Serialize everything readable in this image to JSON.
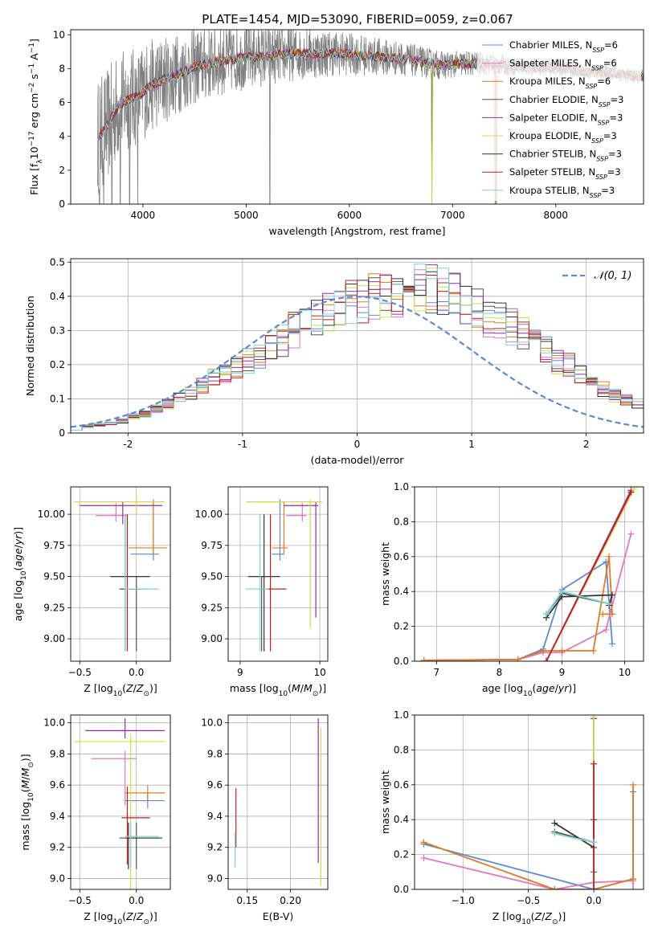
{
  "figure_title": "PLATE=1454, MJD=53090, FIBERID=0059, z=0.067",
  "colors": {
    "Chabrier MILES": "#5B8BD6",
    "Salpeter MILES": "#E377C2",
    "Kroupa MILES": "#E07B24",
    "Chabrier ELODIE": "#555555",
    "Salpeter ELODIE": "#9B27B0",
    "Kroupa ELODIE": "#CCE040",
    "Chabrier STELIB": "#333333",
    "Salpeter STELIB": "#C61E1E",
    "Kroupa STELIB": "#7FD6D6",
    "data": "#808080",
    "grid": "#b0b0b0"
  },
  "chart_data": [
    {
      "id": "spectrum",
      "type": "line",
      "xlabel": "wavelength [Angstrom, rest frame]",
      "ylabel": "Flux [fλ10⁻¹⁷ erg cm⁻² s⁻¹ A⁻¹]",
      "xlim": [
        3300,
        8850
      ],
      "ylim": [
        0,
        10.3
      ],
      "xticks": [
        4000,
        5000,
        6000,
        7000,
        8000
      ],
      "yticks": [
        0,
        2,
        4,
        6,
        8,
        10
      ],
      "grid": false,
      "legend_position": "right",
      "legend": [
        "Chabrier MILES, N_SSP=6",
        "Salpeter MILES, N_SSP=6",
        "Kroupa MILES, N_SSP=6",
        "Chabrier ELODIE, N_SSP=3",
        "Salpeter ELODIE, N_SSP=3",
        "Kroupa ELODIE, N_SSP=3",
        "Chabrier STELIB, N_SSP=3",
        "Salpeter STELIB, N_SSP=3",
        "Kroupa STELIB, N_SSP=3"
      ],
      "model_continuum": {
        "x": [
          3550,
          3650,
          3750,
          3850,
          3950,
          4050,
          4150,
          4300,
          4500,
          4700,
          4900,
          5100,
          5300,
          5500,
          5700,
          5900,
          6100,
          6300,
          6500,
          6700,
          6900,
          7100,
          7300,
          7500,
          7700,
          7900,
          8100,
          8300,
          8500,
          8700,
          8850
        ],
        "y": [
          3.8,
          4.6,
          5.7,
          6.2,
          6.3,
          6.9,
          7.2,
          7.6,
          8.1,
          8.4,
          8.6,
          8.7,
          8.8,
          8.9,
          8.9,
          8.9,
          8.8,
          8.7,
          8.6,
          8.4,
          8.2,
          8.3,
          8.3,
          8.2,
          8.1,
          8.1,
          8.0,
          7.8,
          7.8,
          7.6,
          7.5
        ]
      },
      "data_noise_amplitude": [
        3.5,
        2.4,
        1.8,
        1.3,
        0.9,
        0.6,
        0.45
      ],
      "data_dropouts_x": [
        3580,
        3620,
        3700,
        3780,
        3870,
        3950,
        5230,
        6800,
        7420
      ]
    },
    {
      "id": "residuals",
      "type": "histogram",
      "xlabel": "(data-model)/error",
      "ylabel": "Normed distribution",
      "xlim": [
        -2.5,
        2.5
      ],
      "ylim": [
        0,
        0.51
      ],
      "xticks": [
        -2,
        -1,
        0,
        1,
        2
      ],
      "yticks": [
        0.0,
        0.1,
        0.2,
        0.3,
        0.4,
        0.5
      ],
      "grid": true,
      "legend": [
        "𝒩(0, 1)"
      ],
      "bin_width": 0.1,
      "bin_start": -2.5,
      "series_base": [
        0.01,
        0.02,
        0.025,
        0.03,
        0.035,
        0.05,
        0.055,
        0.07,
        0.085,
        0.1,
        0.12,
        0.14,
        0.16,
        0.18,
        0.19,
        0.21,
        0.23,
        0.25,
        0.27,
        0.3,
        0.31,
        0.33,
        0.35,
        0.36,
        0.38,
        0.39,
        0.4,
        0.4,
        0.41,
        0.42,
        0.42,
        0.42,
        0.41,
        0.4,
        0.38,
        0.37,
        0.34,
        0.33,
        0.31,
        0.29,
        0.26,
        0.24,
        0.21,
        0.2,
        0.17,
        0.15,
        0.13,
        0.11,
        0.1,
        0.08,
        0.06,
        0.05,
        0.04,
        0.03,
        0.025,
        0.02,
        0.02,
        0.015,
        0.01,
        0.01
      ]
    },
    {
      "id": "age_vs_Z",
      "type": "errorbar",
      "xlabel": "Z [log₁₀(Z/Z⊙)]",
      "ylabel": "age  [log₁₀(age/yr)]",
      "xlim": [
        -0.58,
        0.3
      ],
      "ylim": [
        8.82,
        10.22
      ],
      "xticks": [
        -0.5,
        0.0
      ],
      "xticklabels": [
        "−0.5",
        "0.0"
      ],
      "yticks": [
        9.0,
        9.25,
        9.5,
        9.75,
        10.0
      ],
      "yticklabels": [
        "9.00",
        "9.25",
        "9.50",
        "9.75",
        "10.00"
      ],
      "grid": true,
      "points": [
        {
          "s": "Chabrier MILES",
          "x": 0.15,
          "xerr": [
            0.2,
            0.05
          ],
          "y": 9.68,
          "yerr": [
            0.05,
            0.44
          ]
        },
        {
          "s": "Salpeter MILES",
          "x": -0.18,
          "xerr": [
            0.18,
            0.1
          ],
          "y": 9.99,
          "yerr": [
            0.05,
            0.1
          ]
        },
        {
          "s": "Kroupa MILES",
          "x": 0.15,
          "xerr": [
            0.22,
            0.12
          ],
          "y": 9.73,
          "yerr": [
            0.05,
            0.37
          ]
        },
        {
          "s": "Chabrier ELODIE",
          "x": 0.0,
          "xerr": [
            0.15,
            0.02
          ],
          "y": 9.4,
          "yerr": [
            0.5,
            0.1
          ]
        },
        {
          "s": "Salpeter ELODIE",
          "x": -0.12,
          "xerr": [
            0.38,
            0.35
          ],
          "y": 10.07,
          "yerr": [
            0.15,
            0.03
          ]
        },
        {
          "s": "Kroupa ELODIE",
          "x": 0.0,
          "xerr": [
            0.55,
            0.25
          ],
          "y": 10.1,
          "yerr": [
            0.1,
            0.05
          ]
        },
        {
          "s": "Chabrier STELIB",
          "x": -0.1,
          "xerr": [
            0.13,
            0.22
          ],
          "y": 9.5,
          "yerr": [
            0.6,
            0.5
          ]
        },
        {
          "s": "Salpeter STELIB",
          "x": -0.08,
          "xerr": [
            0.05,
            0.15
          ],
          "y": 9.4,
          "yerr": [
            0.5,
            0.6
          ]
        },
        {
          "s": "Kroupa STELIB",
          "x": -0.1,
          "xerr": [
            0.01,
            0.3
          ],
          "y": 9.4,
          "yerr": [
            0.5,
            0.6
          ]
        }
      ]
    },
    {
      "id": "age_vs_mass",
      "type": "errorbar",
      "xlabel": "mass [log₁₀(M/M⊙)]",
      "ylabel": "",
      "xlim": [
        8.85,
        10.1
      ],
      "ylim": [
        8.82,
        10.22
      ],
      "xticks": [
        9,
        10
      ],
      "yticks": [
        9.0,
        9.25,
        9.5,
        9.75,
        10.0
      ],
      "yticklabels": [
        "9.00",
        "9.25",
        "9.50",
        "9.75",
        "10.00"
      ],
      "grid": true,
      "points": [
        {
          "s": "Chabrier MILES",
          "x": 9.5,
          "xerr": [
            0.1,
            0.05
          ],
          "y": 9.68,
          "yerr": [
            0.05,
            0.44
          ]
        },
        {
          "s": "Salpeter MILES",
          "x": 9.78,
          "xerr": [
            0.2,
            0.05
          ],
          "y": 9.99,
          "yerr": [
            0.05,
            0.1
          ]
        },
        {
          "s": "Kroupa MILES",
          "x": 9.55,
          "xerr": [
            0.15,
            0.05
          ],
          "y": 9.73,
          "yerr": [
            0.05,
            0.37
          ]
        },
        {
          "s": "Chabrier ELODIE",
          "x": 9.27,
          "xerr": [
            0.03,
            0.03
          ],
          "y": 9.4,
          "yerr": [
            0.5,
            0.1
          ]
        },
        {
          "s": "Salpeter ELODIE",
          "x": 9.95,
          "xerr": [
            0.4,
            0.03
          ],
          "y": 10.07,
          "yerr": [
            0.9,
            0.03
          ]
        },
        {
          "s": "Kroupa ELODIE",
          "x": 9.88,
          "xerr": [
            0.8,
            0.15
          ],
          "y": 10.1,
          "yerr": [
            1.02,
            0.02
          ]
        },
        {
          "s": "Chabrier STELIB",
          "x": 9.3,
          "xerr": [
            0.2,
            0.2
          ],
          "y": 9.5,
          "yerr": [
            0.6,
            0.5
          ]
        },
        {
          "s": "Salpeter STELIB",
          "x": 9.38,
          "xerr": [
            0.15,
            0.2
          ],
          "y": 9.4,
          "yerr": [
            0.5,
            0.6
          ]
        },
        {
          "s": "Kroupa STELIB",
          "x": 9.25,
          "xerr": [
            0.18,
            0.1
          ],
          "y": 9.4,
          "yerr": [
            0.5,
            0.6
          ]
        }
      ]
    },
    {
      "id": "weight_vs_age",
      "type": "line",
      "xlabel": "age  [log₁₀(age/yr)]",
      "ylabel": "mass weight",
      "xlim": [
        6.65,
        10.3
      ],
      "ylim": [
        0,
        1.0
      ],
      "xticks": [
        7,
        8,
        9,
        10
      ],
      "yticks": [
        0.0,
        0.2,
        0.4,
        0.6,
        0.8,
        1.0
      ],
      "yticklabels": [
        "0.0",
        "0.2",
        "0.4",
        "0.6",
        "0.8",
        "1.0"
      ],
      "grid": true,
      "series": [
        {
          "s": "Chabrier MILES",
          "x": [
            6.8,
            8.3,
            8.7,
            9.0,
            9.7,
            9.8
          ],
          "y": [
            0.005,
            0.01,
            0.07,
            0.41,
            0.57,
            0.1
          ]
        },
        {
          "s": "Salpeter MILES",
          "x": [
            6.8,
            8.3,
            8.7,
            9.0,
            9.7,
            10.1
          ],
          "y": [
            0.005,
            0.01,
            0.05,
            0.05,
            0.18,
            0.73
          ]
        },
        {
          "s": "Kroupa MILES",
          "x": [
            6.8,
            8.3,
            8.7,
            9.0,
            9.5,
            9.75,
            9.8,
            9.65
          ],
          "y": [
            0.005,
            0.01,
            0.06,
            0.06,
            0.06,
            0.6,
            0.27,
            0.27
          ]
        },
        {
          "s": "Chabrier ELODIE",
          "x": [
            8.75,
            9.0,
            9.75
          ],
          "y": [
            0.27,
            0.39,
            0.33
          ]
        },
        {
          "s": "Salpeter ELODIE",
          "x": [
            8.75,
            10.1
          ],
          "y": [
            0.0,
            0.98
          ]
        },
        {
          "s": "Kroupa ELODIE",
          "x": [
            8.75,
            10.15
          ],
          "y": [
            0.0,
            0.99
          ]
        },
        {
          "s": "Chabrier STELIB",
          "x": [
            8.75,
            9.0,
            9.8,
            9.75
          ],
          "y": [
            0.25,
            0.37,
            0.38,
            0.32
          ]
        },
        {
          "s": "Salpeter STELIB",
          "x": [
            8.75,
            10.1
          ],
          "y": [
            0.0,
            0.97
          ]
        },
        {
          "s": "Kroupa STELIB",
          "x": [
            8.75,
            9.0,
            9.75
          ],
          "y": [
            0.27,
            0.4,
            0.33
          ]
        }
      ]
    },
    {
      "id": "mass_vs_Z",
      "type": "errorbar",
      "xlabel": "Z [log₁₀(Z/Z⊙)]",
      "ylabel": "mass [log₁₀(M/M⊙)]",
      "xlim": [
        -0.58,
        0.3
      ],
      "ylim": [
        8.93,
        10.05
      ],
      "xticks": [
        -0.5,
        0.0
      ],
      "xticklabels": [
        "−0.5",
        "0.0"
      ],
      "yticks": [
        9.0,
        9.2,
        9.4,
        9.6,
        9.8,
        10.0
      ],
      "yticklabels": [
        "9.0",
        "9.2",
        "9.4",
        "9.6",
        "9.8",
        "10.0"
      ],
      "grid": true,
      "points": [
        {
          "s": "Chabrier MILES",
          "x": 0.1,
          "xerr": [
            0.2,
            0.15
          ],
          "y": 9.5,
          "yerr": [
            0.05,
            0.05
          ]
        },
        {
          "s": "Salpeter MILES",
          "x": -0.1,
          "xerr": [
            0.3,
            0.1
          ],
          "y": 9.77,
          "yerr": [
            0.3,
            0.05
          ]
        },
        {
          "s": "Kroupa MILES",
          "x": 0.1,
          "xerr": [
            0.2,
            0.15
          ],
          "y": 9.55,
          "yerr": [
            0.05,
            0.05
          ]
        },
        {
          "s": "Chabrier ELODIE",
          "x": 0.0,
          "xerr": [
            0.15,
            0.2
          ],
          "y": 9.26,
          "yerr": [
            0.2,
            0.1
          ]
        },
        {
          "s": "Salpeter ELODIE",
          "x": -0.1,
          "xerr": [
            0.35,
            0.35
          ],
          "y": 9.95,
          "yerr": [
            0.05,
            0.08
          ]
        },
        {
          "s": "Kroupa ELODIE",
          "x": -0.05,
          "xerr": [
            0.5,
            0.3
          ],
          "y": 9.88,
          "yerr": [
            0.95,
            0.05
          ]
        },
        {
          "s": "Chabrier STELIB",
          "x": -0.07,
          "xerr": [
            0.03,
            0.3
          ],
          "y": 9.26,
          "yerr": [
            0.2,
            0.1
          ]
        },
        {
          "s": "Salpeter STELIB",
          "x": -0.08,
          "xerr": [
            0.05,
            0.2
          ],
          "y": 9.39,
          "yerr": [
            0.3,
            0.2
          ]
        },
        {
          "s": "Kroupa STELIB",
          "x": -0.05,
          "xerr": [
            0.05,
            0.25
          ],
          "y": 9.27,
          "yerr": [
            0.2,
            0.1
          ]
        }
      ]
    },
    {
      "id": "mass_vs_ebv",
      "type": "errorbar",
      "xlabel": "E(B-V)",
      "ylabel": "",
      "xlim": [
        0.128,
        0.243
      ],
      "ylim": [
        8.93,
        10.05
      ],
      "xticks": [
        0.15,
        0.2
      ],
      "xticklabels": [
        "0.15",
        "0.20"
      ],
      "yticks": [
        9.0,
        9.2,
        9.4,
        9.6,
        9.8,
        10.0
      ],
      "yticklabels": [
        "9.0",
        "9.2",
        "9.4",
        "9.6",
        "9.8",
        "10.0"
      ],
      "grid": true,
      "points": [
        {
          "s": "Salpeter ELODIE",
          "x": 0.232,
          "xerr": [
            0,
            0
          ],
          "y": 9.55,
          "yerr": [
            0.45,
            0.48
          ]
        },
        {
          "s": "Kroupa ELODIE",
          "x": 0.235,
          "xerr": [
            0,
            0
          ],
          "y": 9.5,
          "yerr": [
            0.55,
            0.47
          ]
        },
        {
          "s": "Salpeter STELIB",
          "x": 0.137,
          "xerr": [
            0,
            0
          ],
          "y": 9.4,
          "yerr": [
            0.2,
            0.18
          ]
        },
        {
          "s": "Kroupa STELIB",
          "x": 0.136,
          "xerr": [
            0,
            0
          ],
          "y": 9.2,
          "yerr": [
            0.13,
            0.1
          ]
        }
      ]
    },
    {
      "id": "weight_vs_Z",
      "type": "line",
      "xlabel": "Z [log₁₀(Z/Z⊙)]",
      "ylabel": "mass weight",
      "xlim": [
        -1.37,
        0.38
      ],
      "ylim": [
        0,
        1.0
      ],
      "xticks": [
        -1.0,
        -0.5,
        0.0
      ],
      "xticklabels": [
        "−1.0",
        "−0.5",
        "0.0"
      ],
      "yticks": [
        0.0,
        0.2,
        0.4,
        0.6,
        0.8,
        1.0
      ],
      "yticklabels": [
        "0.0",
        "0.2",
        "0.4",
        "0.6",
        "0.8",
        "1.0"
      ],
      "grid": true,
      "series": [
        {
          "s": "Chabrier MILES",
          "x": [
            -1.3,
            0.0,
            0.3,
            0.3
          ],
          "y": [
            0.26,
            0.0,
            0.06,
            0.56
          ]
        },
        {
          "s": "Salpeter MILES",
          "x": [
            -1.3,
            -0.3,
            0.0,
            0.3,
            0.3
          ],
          "y": [
            0.18,
            0.0,
            0.04,
            0.05,
            0.0
          ]
        },
        {
          "s": "Kroupa MILES",
          "x": [
            -1.3,
            -0.3,
            0.0,
            0.3,
            0.3
          ],
          "y": [
            0.27,
            0.0,
            0.0,
            0.06,
            0.6
          ]
        },
        {
          "s": "Chabrier ELODIE",
          "x": [
            -0.3,
            0.0,
            0.0
          ],
          "y": [
            0.33,
            0.27,
            0.1
          ]
        },
        {
          "s": "Salpeter ELODIE",
          "x": [
            0.0,
            0.0
          ],
          "y": [
            0.0,
            0.98
          ]
        },
        {
          "s": "Kroupa ELODIE",
          "x": [
            0.0,
            0.0
          ],
          "y": [
            0.0,
            0.99
          ]
        },
        {
          "s": "Chabrier STELIB",
          "x": [
            -0.3,
            0.0,
            0.0
          ],
          "y": [
            0.38,
            0.24,
            0.4
          ]
        },
        {
          "s": "Salpeter STELIB",
          "x": [
            0.0,
            0.0
          ],
          "y": [
            0.0,
            0.72
          ]
        },
        {
          "s": "Kroupa STELIB",
          "x": [
            -0.3,
            0.0
          ],
          "y": [
            0.32,
            0.27
          ]
        }
      ]
    }
  ]
}
